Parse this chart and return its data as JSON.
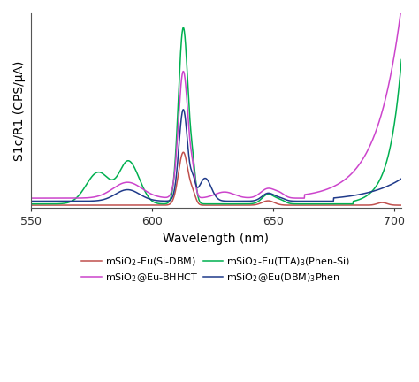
{
  "xlabel": "Wavelength (nm)",
  "ylabel": "S1c/R1 (CPS/μA)",
  "xlim": [
    550,
    703
  ],
  "x_ticks": [
    550,
    600,
    650,
    700
  ],
  "background_color": "#ffffff",
  "series": [
    {
      "label": "mSiO$_2$-Eu(Si-DBM)",
      "color": "#c0504d",
      "linewidth": 1.1
    },
    {
      "label": "mSiO$_2$-Eu(TTA)$_3$(Phen-Si)",
      "color": "#00b050",
      "linewidth": 1.1
    },
    {
      "label": "mSiO$_2$@Eu-BHHCT",
      "color": "#cc44cc",
      "linewidth": 1.1
    },
    {
      "label": "mSiO$_2$@Eu(DBM)$_3$Phen",
      "color": "#1f3a8a",
      "linewidth": 1.1
    }
  ],
  "legend_fontsize": 8,
  "axis_fontsize": 10
}
